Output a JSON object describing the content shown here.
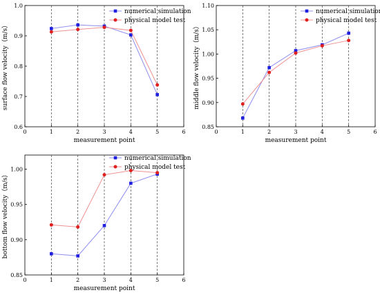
{
  "legend_labels": [
    "numerical simulation",
    "physical model test"
  ],
  "colors": {
    "simulation": "#1f1fe0",
    "physical": "#e01f1f",
    "sim_line": "#8c8cf0",
    "phys_line": "#f09090",
    "axis": "#000000",
    "guide": "#444444"
  },
  "chart_data": [
    {
      "type": "line",
      "title": "",
      "xlabel": "measurement point",
      "ylabel": "surface flow velocity（m/s）",
      "xlim": [
        0,
        6
      ],
      "ylim": [
        0.6,
        1.0
      ],
      "xticks": [
        0,
        1,
        2,
        3,
        4,
        5,
        6
      ],
      "yticks": [
        0.6,
        0.7,
        0.8,
        0.9,
        1.0
      ],
      "ytick_labels": [
        "0.6",
        "0.7",
        "0.8",
        "0.9",
        "1.0"
      ],
      "vlines": [
        1,
        2,
        3,
        4,
        5
      ],
      "x": [
        1,
        2,
        3,
        4,
        5
      ],
      "series": [
        {
          "name": "numerical simulation",
          "marker": "square",
          "values": [
            0.924,
            0.936,
            0.932,
            0.903,
            0.706
          ]
        },
        {
          "name": "physical model test",
          "marker": "circle",
          "values": [
            0.913,
            0.921,
            0.928,
            0.918,
            0.738
          ]
        }
      ],
      "legend_position": "top-right"
    },
    {
      "type": "line",
      "title": "",
      "xlabel": "measurement point",
      "ylabel": "middle flow velocity（m/s）",
      "xlim": [
        0,
        6
      ],
      "ylim": [
        0.85,
        1.1
      ],
      "xticks": [
        0,
        1,
        2,
        3,
        4,
        5,
        6
      ],
      "yticks": [
        0.85,
        0.9,
        0.95,
        1.0,
        1.05,
        1.1
      ],
      "ytick_labels": [
        "0.85",
        "0.90",
        "0.95",
        "1.00",
        "1.05",
        "1.10"
      ],
      "vlines": [
        1,
        2,
        3,
        4,
        5
      ],
      "x": [
        1,
        2,
        3,
        4,
        5
      ],
      "series": [
        {
          "name": "numerical simulation",
          "marker": "square",
          "values": [
            0.868,
            0.972,
            1.007,
            1.019,
            1.043
          ]
        },
        {
          "name": "physical model test",
          "marker": "circle",
          "values": [
            0.897,
            0.962,
            1.002,
            1.017,
            1.028
          ]
        }
      ],
      "legend_position": "top-right"
    },
    {
      "type": "line",
      "title": "",
      "xlabel": "measurement point",
      "ylabel": "bottom flow velocity（m/s）",
      "xlim": [
        0,
        6
      ],
      "ylim": [
        0.85,
        1.02
      ],
      "xticks": [
        0,
        1,
        2,
        3,
        4,
        5,
        6
      ],
      "yticks": [
        0.85,
        0.9,
        0.95,
        1.0
      ],
      "ytick_labels": [
        "0.85",
        "0.90",
        "0.95",
        "1.00"
      ],
      "vlines": [
        1,
        2,
        3,
        4,
        5
      ],
      "x": [
        1,
        2,
        3,
        4,
        5
      ],
      "series": [
        {
          "name": "numerical simulation",
          "marker": "square",
          "values": [
            0.88,
            0.877,
            0.92,
            0.98,
            0.993
          ]
        },
        {
          "name": "physical model test",
          "marker": "circle",
          "values": [
            0.921,
            0.918,
            0.992,
            0.998,
            0.995
          ]
        }
      ],
      "legend_position": "top-right"
    }
  ]
}
